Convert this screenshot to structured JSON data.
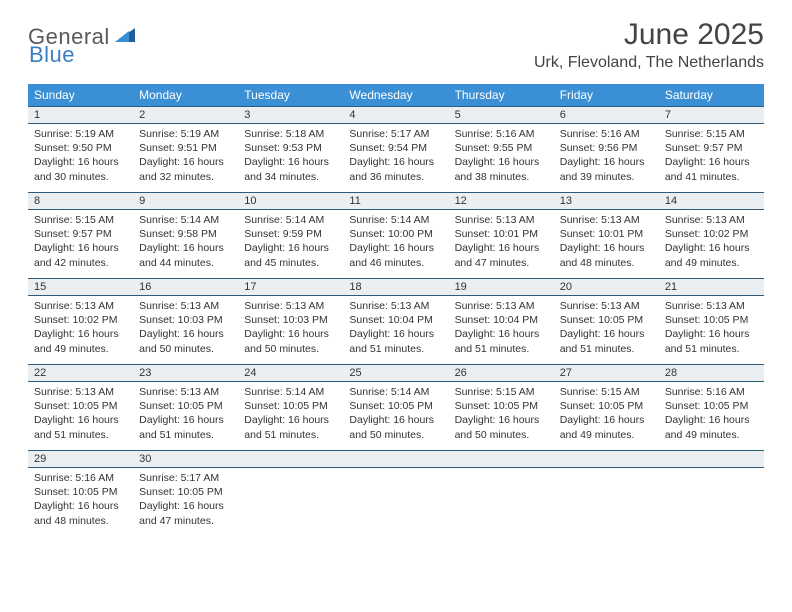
{
  "logo": {
    "text_general": "General",
    "text_blue": "Blue",
    "general_color": "#5a5a5a",
    "blue_color": "#3b7fc4"
  },
  "title": "June 2025",
  "location": "Urk, Flevoland, The Netherlands",
  "colors": {
    "header_bg": "#3b8fd4",
    "header_text": "#ffffff",
    "daynum_bg": "#eceff1",
    "daynum_border": "#2f5a7a",
    "body_text": "#333333",
    "page_bg": "#ffffff"
  },
  "typography": {
    "title_fontsize": 30,
    "location_fontsize": 16,
    "header_fontsize": 12,
    "cell_fontsize": 10.5,
    "logo_fontsize": 22
  },
  "day_headers": [
    "Sunday",
    "Monday",
    "Tuesday",
    "Wednesday",
    "Thursday",
    "Friday",
    "Saturday"
  ],
  "weeks": [
    [
      {
        "n": "1",
        "sunrise": "Sunrise: 5:19 AM",
        "sunset": "Sunset: 9:50 PM",
        "daylight": "Daylight: 16 hours and 30 minutes."
      },
      {
        "n": "2",
        "sunrise": "Sunrise: 5:19 AM",
        "sunset": "Sunset: 9:51 PM",
        "daylight": "Daylight: 16 hours and 32 minutes."
      },
      {
        "n": "3",
        "sunrise": "Sunrise: 5:18 AM",
        "sunset": "Sunset: 9:53 PM",
        "daylight": "Daylight: 16 hours and 34 minutes."
      },
      {
        "n": "4",
        "sunrise": "Sunrise: 5:17 AM",
        "sunset": "Sunset: 9:54 PM",
        "daylight": "Daylight: 16 hours and 36 minutes."
      },
      {
        "n": "5",
        "sunrise": "Sunrise: 5:16 AM",
        "sunset": "Sunset: 9:55 PM",
        "daylight": "Daylight: 16 hours and 38 minutes."
      },
      {
        "n": "6",
        "sunrise": "Sunrise: 5:16 AM",
        "sunset": "Sunset: 9:56 PM",
        "daylight": "Daylight: 16 hours and 39 minutes."
      },
      {
        "n": "7",
        "sunrise": "Sunrise: 5:15 AM",
        "sunset": "Sunset: 9:57 PM",
        "daylight": "Daylight: 16 hours and 41 minutes."
      }
    ],
    [
      {
        "n": "8",
        "sunrise": "Sunrise: 5:15 AM",
        "sunset": "Sunset: 9:57 PM",
        "daylight": "Daylight: 16 hours and 42 minutes."
      },
      {
        "n": "9",
        "sunrise": "Sunrise: 5:14 AM",
        "sunset": "Sunset: 9:58 PM",
        "daylight": "Daylight: 16 hours and 44 minutes."
      },
      {
        "n": "10",
        "sunrise": "Sunrise: 5:14 AM",
        "sunset": "Sunset: 9:59 PM",
        "daylight": "Daylight: 16 hours and 45 minutes."
      },
      {
        "n": "11",
        "sunrise": "Sunrise: 5:14 AM",
        "sunset": "Sunset: 10:00 PM",
        "daylight": "Daylight: 16 hours and 46 minutes."
      },
      {
        "n": "12",
        "sunrise": "Sunrise: 5:13 AM",
        "sunset": "Sunset: 10:01 PM",
        "daylight": "Daylight: 16 hours and 47 minutes."
      },
      {
        "n": "13",
        "sunrise": "Sunrise: 5:13 AM",
        "sunset": "Sunset: 10:01 PM",
        "daylight": "Daylight: 16 hours and 48 minutes."
      },
      {
        "n": "14",
        "sunrise": "Sunrise: 5:13 AM",
        "sunset": "Sunset: 10:02 PM",
        "daylight": "Daylight: 16 hours and 49 minutes."
      }
    ],
    [
      {
        "n": "15",
        "sunrise": "Sunrise: 5:13 AM",
        "sunset": "Sunset: 10:02 PM",
        "daylight": "Daylight: 16 hours and 49 minutes."
      },
      {
        "n": "16",
        "sunrise": "Sunrise: 5:13 AM",
        "sunset": "Sunset: 10:03 PM",
        "daylight": "Daylight: 16 hours and 50 minutes."
      },
      {
        "n": "17",
        "sunrise": "Sunrise: 5:13 AM",
        "sunset": "Sunset: 10:03 PM",
        "daylight": "Daylight: 16 hours and 50 minutes."
      },
      {
        "n": "18",
        "sunrise": "Sunrise: 5:13 AM",
        "sunset": "Sunset: 10:04 PM",
        "daylight": "Daylight: 16 hours and 51 minutes."
      },
      {
        "n": "19",
        "sunrise": "Sunrise: 5:13 AM",
        "sunset": "Sunset: 10:04 PM",
        "daylight": "Daylight: 16 hours and 51 minutes."
      },
      {
        "n": "20",
        "sunrise": "Sunrise: 5:13 AM",
        "sunset": "Sunset: 10:05 PM",
        "daylight": "Daylight: 16 hours and 51 minutes."
      },
      {
        "n": "21",
        "sunrise": "Sunrise: 5:13 AM",
        "sunset": "Sunset: 10:05 PM",
        "daylight": "Daylight: 16 hours and 51 minutes."
      }
    ],
    [
      {
        "n": "22",
        "sunrise": "Sunrise: 5:13 AM",
        "sunset": "Sunset: 10:05 PM",
        "daylight": "Daylight: 16 hours and 51 minutes."
      },
      {
        "n": "23",
        "sunrise": "Sunrise: 5:13 AM",
        "sunset": "Sunset: 10:05 PM",
        "daylight": "Daylight: 16 hours and 51 minutes."
      },
      {
        "n": "24",
        "sunrise": "Sunrise: 5:14 AM",
        "sunset": "Sunset: 10:05 PM",
        "daylight": "Daylight: 16 hours and 51 minutes."
      },
      {
        "n": "25",
        "sunrise": "Sunrise: 5:14 AM",
        "sunset": "Sunset: 10:05 PM",
        "daylight": "Daylight: 16 hours and 50 minutes."
      },
      {
        "n": "26",
        "sunrise": "Sunrise: 5:15 AM",
        "sunset": "Sunset: 10:05 PM",
        "daylight": "Daylight: 16 hours and 50 minutes."
      },
      {
        "n": "27",
        "sunrise": "Sunrise: 5:15 AM",
        "sunset": "Sunset: 10:05 PM",
        "daylight": "Daylight: 16 hours and 49 minutes."
      },
      {
        "n": "28",
        "sunrise": "Sunrise: 5:16 AM",
        "sunset": "Sunset: 10:05 PM",
        "daylight": "Daylight: 16 hours and 49 minutes."
      }
    ],
    [
      {
        "n": "29",
        "sunrise": "Sunrise: 5:16 AM",
        "sunset": "Sunset: 10:05 PM",
        "daylight": "Daylight: 16 hours and 48 minutes."
      },
      {
        "n": "30",
        "sunrise": "Sunrise: 5:17 AM",
        "sunset": "Sunset: 10:05 PM",
        "daylight": "Daylight: 16 hours and 47 minutes."
      },
      {
        "n": "",
        "sunrise": "",
        "sunset": "",
        "daylight": "",
        "empty": true
      },
      {
        "n": "",
        "sunrise": "",
        "sunset": "",
        "daylight": "",
        "empty": true
      },
      {
        "n": "",
        "sunrise": "",
        "sunset": "",
        "daylight": "",
        "empty": true
      },
      {
        "n": "",
        "sunrise": "",
        "sunset": "",
        "daylight": "",
        "empty": true
      },
      {
        "n": "",
        "sunrise": "",
        "sunset": "",
        "daylight": "",
        "empty": true
      }
    ]
  ]
}
